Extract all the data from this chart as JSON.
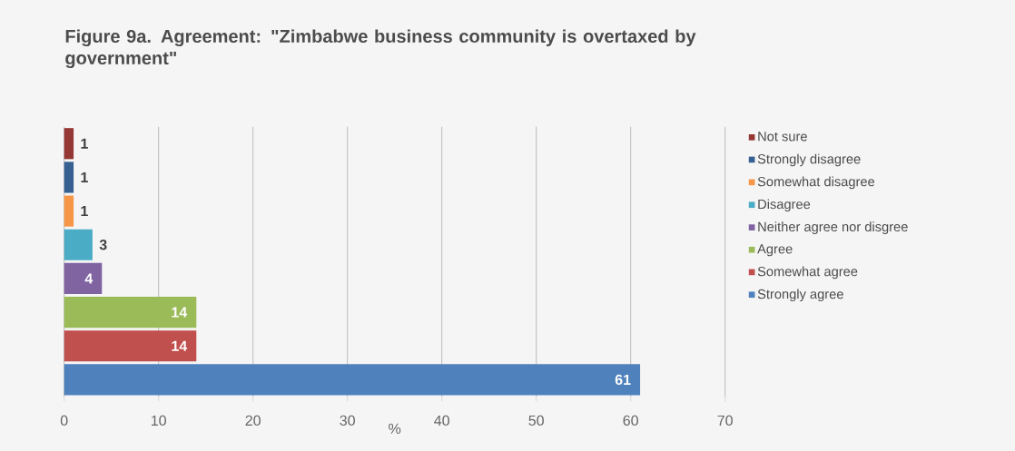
{
  "chart_data": {
    "type": "bar",
    "orientation": "horizontal",
    "title": "Figure 9a.  Agreement: \"Zimbabwe business community is overtaxed by government\"",
    "xlabel": "%",
    "categories": [
      null,
      null,
      null,
      null,
      null,
      null,
      null,
      null
    ],
    "series": [
      {
        "name": "Not sure",
        "color": "#953735",
        "values": [
          1,
          null,
          null,
          null,
          null,
          null,
          null,
          null
        ]
      },
      {
        "name": "Strongly disagree",
        "color": "#376092",
        "values": [
          null,
          1,
          null,
          null,
          null,
          null,
          null,
          null
        ]
      },
      {
        "name": "Somewhat disagree",
        "color": "#f79646",
        "values": [
          null,
          null,
          1,
          null,
          null,
          null,
          null,
          null
        ]
      },
      {
        "name": "Disagree",
        "color": "#4bacc6",
        "values": [
          null,
          null,
          null,
          3,
          null,
          null,
          null,
          null
        ]
      },
      {
        "name": "Neither agree nor disgree",
        "color": "#8064a2",
        "values": [
          null,
          null,
          null,
          null,
          4,
          null,
          null,
          null
        ]
      },
      {
        "name": "Agree",
        "color": "#9bbb59",
        "values": [
          null,
          null,
          null,
          null,
          null,
          14,
          null,
          null
        ]
      },
      {
        "name": "Somewhat agree",
        "color": "#c0504d",
        "values": [
          null,
          null,
          null,
          null,
          null,
          null,
          14,
          null
        ]
      },
      {
        "name": "Strongly agree",
        "color": "#4f81bd",
        "values": [
          null,
          null,
          null,
          null,
          null,
          null,
          null,
          61
        ]
      }
    ],
    "xlim": [
      0,
      70
    ],
    "xticks": [
      0,
      10,
      20,
      30,
      40,
      50,
      60,
      70
    ],
    "grid": "x",
    "legend": "right",
    "data_labels": true
  }
}
